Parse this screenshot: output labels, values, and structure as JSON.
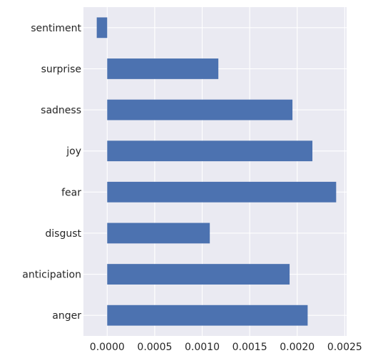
{
  "chart_data": {
    "type": "bar",
    "orientation": "horizontal",
    "title": "",
    "xlabel": "",
    "ylabel": "",
    "categories": [
      "sentiment",
      "surprise",
      "sadness",
      "joy",
      "fear",
      "disgust",
      "anticipation",
      "anger"
    ],
    "values": [
      -0.00011,
      0.00117,
      0.00195,
      0.00216,
      0.00241,
      0.00108,
      0.00192,
      0.00211
    ],
    "xlim": [
      -0.00025,
      0.00252
    ],
    "xticks": [
      0.0,
      0.0005,
      0.001,
      0.0015,
      0.002,
      0.0025
    ],
    "xtick_labels": [
      "0.0000",
      "0.0005",
      "0.0010",
      "0.0015",
      "0.0020",
      "0.0025"
    ],
    "grid": true,
    "colors": {
      "bar": "#4c72b0",
      "background": "#eaeaf2",
      "grid": "#ffffff",
      "text": "#262626"
    }
  }
}
